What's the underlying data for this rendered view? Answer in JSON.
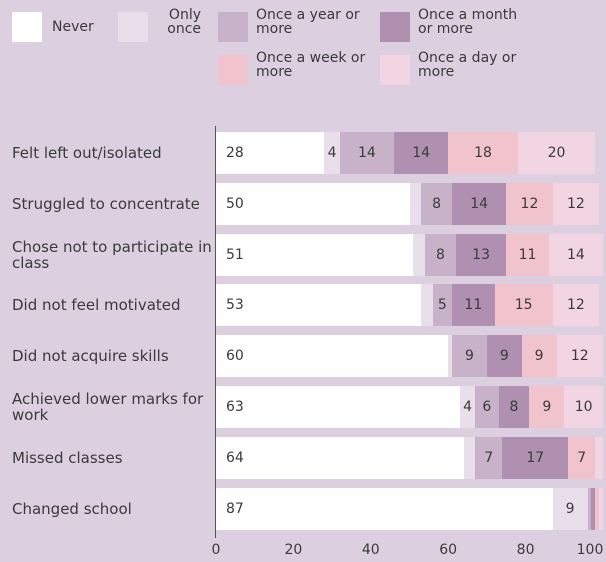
{
  "chart_data": {
    "type": "stacked-barh",
    "categories": [
      "Felt left out/isolated",
      "Struggled to concentrate",
      "Chose not to participate in class",
      "Did not feel motivated",
      "Did not acquire skills",
      "Achieved lower marks for work",
      "Missed classes",
      "Changed school"
    ],
    "series": [
      {
        "name": "Never",
        "color": "#ffffff",
        "values": [
          28,
          50,
          51,
          53,
          60,
          63,
          64,
          87
        ]
      },
      {
        "name": "Only once",
        "color": "#e9dfea",
        "values": [
          4,
          3,
          3,
          3,
          1,
          4,
          3,
          9
        ]
      },
      {
        "name": "Once a year or more",
        "color": "#c7b2c9",
        "values": [
          14,
          8,
          8,
          5,
          9,
          6,
          7,
          1
        ]
      },
      {
        "name": "Once a month or more",
        "color": "#af90b0",
        "values": [
          14,
          14,
          13,
          11,
          9,
          8,
          17,
          1
        ]
      },
      {
        "name": "Once a week or more",
        "color": "#f0c3cd",
        "values": [
          18,
          12,
          11,
          15,
          9,
          9,
          7,
          1
        ]
      },
      {
        "name": "Once a day or more",
        "color": "#f2d5e2",
        "values": [
          20,
          12,
          14,
          12,
          12,
          10,
          2,
          1
        ]
      }
    ],
    "xlim": [
      0,
      100
    ],
    "xticks": [
      0,
      20,
      40,
      60,
      80,
      100
    ]
  }
}
